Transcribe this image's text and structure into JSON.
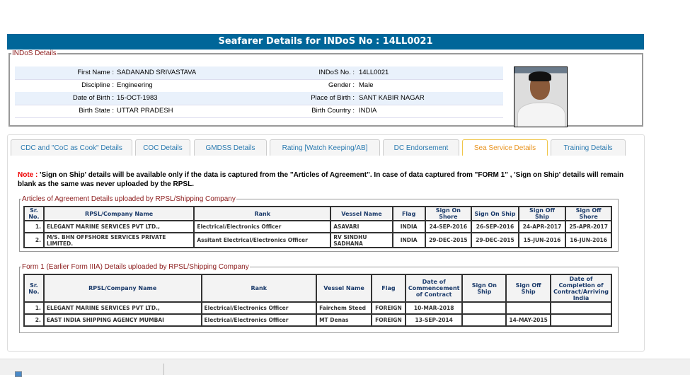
{
  "header": {
    "title": "Seafarer Details for INDoS No : 14LL0021"
  },
  "indos": {
    "legend": "INDoS Details",
    "rows": [
      {
        "l1": "First Name :",
        "v1": "SADANAND SRIVASTAVA",
        "l2": "INDoS No. :",
        "v2": "14LL0021"
      },
      {
        "l1": "Discipline :",
        "v1": "Engineering",
        "l2": "Gender :",
        "v2": "Male"
      },
      {
        "l1": "Date of Birth :",
        "v1": "15-OCT-1983",
        "l2": "Place of Birth :",
        "v2": "SANT KABIR NAGAR"
      },
      {
        "l1": "Birth State :",
        "v1": "UTTAR PRADESH",
        "l2": "Birth Country :",
        "v2": "INDIA"
      }
    ]
  },
  "tabs": [
    "CDC and \"CoC as Cook\" Details",
    "COC Details",
    "GMDSS Details",
    "Rating [Watch Keeping/AB]",
    "DC Endorsement",
    "Sea Service Details",
    "Training Details"
  ],
  "active_tab": "Sea Service Details",
  "note": {
    "label": "Note :",
    "text": " 'Sign on Ship' details will be available only if the data is captured from the \"Articles of Agreement\". In case of data captured from \"FORM 1\" , 'Sign on Ship' details will remain blank as the same was never uploaded by the RPSL."
  },
  "articles": {
    "legend": "Articles of Agreement Details uploaded by RPSL/Shipping Company",
    "headers": [
      "Sr. No.",
      "RPSL/Company Name",
      "Rank",
      "Vessel Name",
      "Flag",
      "Sign On Shore",
      "Sign On Ship",
      "Sign Off Ship",
      "Sign Off Shore"
    ],
    "rows": [
      [
        "1.",
        "ELEGANT MARINE SERVICES PVT LTD.,",
        "Electrical/Electronics Officer",
        "ASAVARI",
        "INDIA",
        "24-SEP-2016",
        "26-SEP-2016",
        "24-APR-2017",
        "25-APR-2017"
      ],
      [
        "2.",
        "M/S. BHN OFFSHORE SERVICES PRIVATE LIMITED.",
        "Assitant Electrical/Electronics Officer",
        "RV SINDHU SADHANA",
        "INDIA",
        "29-DEC-2015",
        "29-DEC-2015",
        "15-JUN-2016",
        "16-JUN-2016"
      ]
    ]
  },
  "form1": {
    "legend": "Form 1 (Earlier Form IIIA) Details uploaded by RPSL/Shipping Company",
    "headers": [
      "Sr. No.",
      "RPSL/Company Name",
      "Rank",
      "Vessel Name",
      "Flag",
      "Date of Commencement of Contract",
      "Sign On Ship",
      "Sign Off Ship",
      "Date of Completion of Contract/Arriving India"
    ],
    "rows": [
      [
        "1.",
        "ELEGANT MARINE SERVICES PVT LTD.,",
        "Electrical/Electronics Officer",
        "Fairchem Steed",
        "FOREIGN",
        "10-MAR-2018",
        "",
        "",
        ""
      ],
      [
        "2.",
        "EAST INDIA SHIPPING AGENCY MUMBAI",
        "Electrical/Electronics Officer",
        "MT Denas",
        "FOREIGN",
        "13-SEP-2014",
        "",
        "14-MAY-2015",
        ""
      ]
    ]
  },
  "colors": {
    "header_bg": "#006699",
    "active_tab": "#e8931e",
    "tab_text": "#2a7ab0",
    "legend": "#8b1a1a",
    "note_label": "#ee0000"
  }
}
